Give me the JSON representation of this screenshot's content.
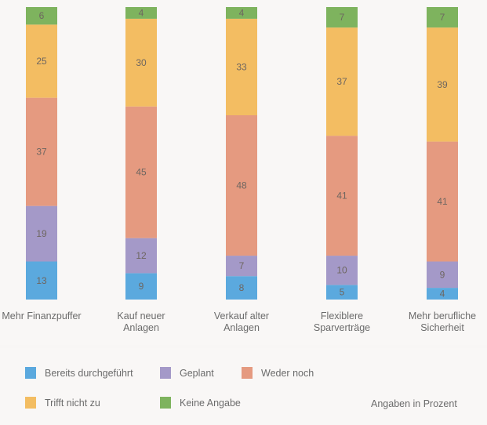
{
  "chart_data": {
    "type": "bar",
    "stacked": true,
    "title": "",
    "xlabel": "",
    "ylabel": "",
    "ylim": [
      0,
      100
    ],
    "grid": false,
    "categories": [
      [
        "Mehr Finanzpuffer"
      ],
      [
        "Kauf neuer",
        "Anlagen"
      ],
      [
        "Verkauf alter",
        "Anlagen"
      ],
      [
        "Flexiblere",
        "Sparverträge"
      ],
      [
        "Mehr berufliche",
        "Sicherheit"
      ]
    ],
    "series": [
      {
        "name": "Bereits durchgeführt",
        "color": "#5ba9de",
        "values": [
          13,
          9,
          8,
          5,
          4
        ]
      },
      {
        "name": "Geplant",
        "color": "#a499c8",
        "values": [
          19,
          12,
          7,
          10,
          9
        ]
      },
      {
        "name": "Weder noch",
        "color": "#e59a80",
        "values": [
          37,
          45,
          48,
          41,
          41
        ]
      },
      {
        "name": "Trifft nicht zu",
        "color": "#f3bd62",
        "values": [
          25,
          30,
          33,
          37,
          39
        ]
      },
      {
        "name": "Keine Angabe",
        "color": "#7eb35e",
        "values": [
          6,
          4,
          4,
          7,
          7
        ]
      }
    ],
    "legend_position": "bottom",
    "note": "Angaben in Prozent"
  }
}
